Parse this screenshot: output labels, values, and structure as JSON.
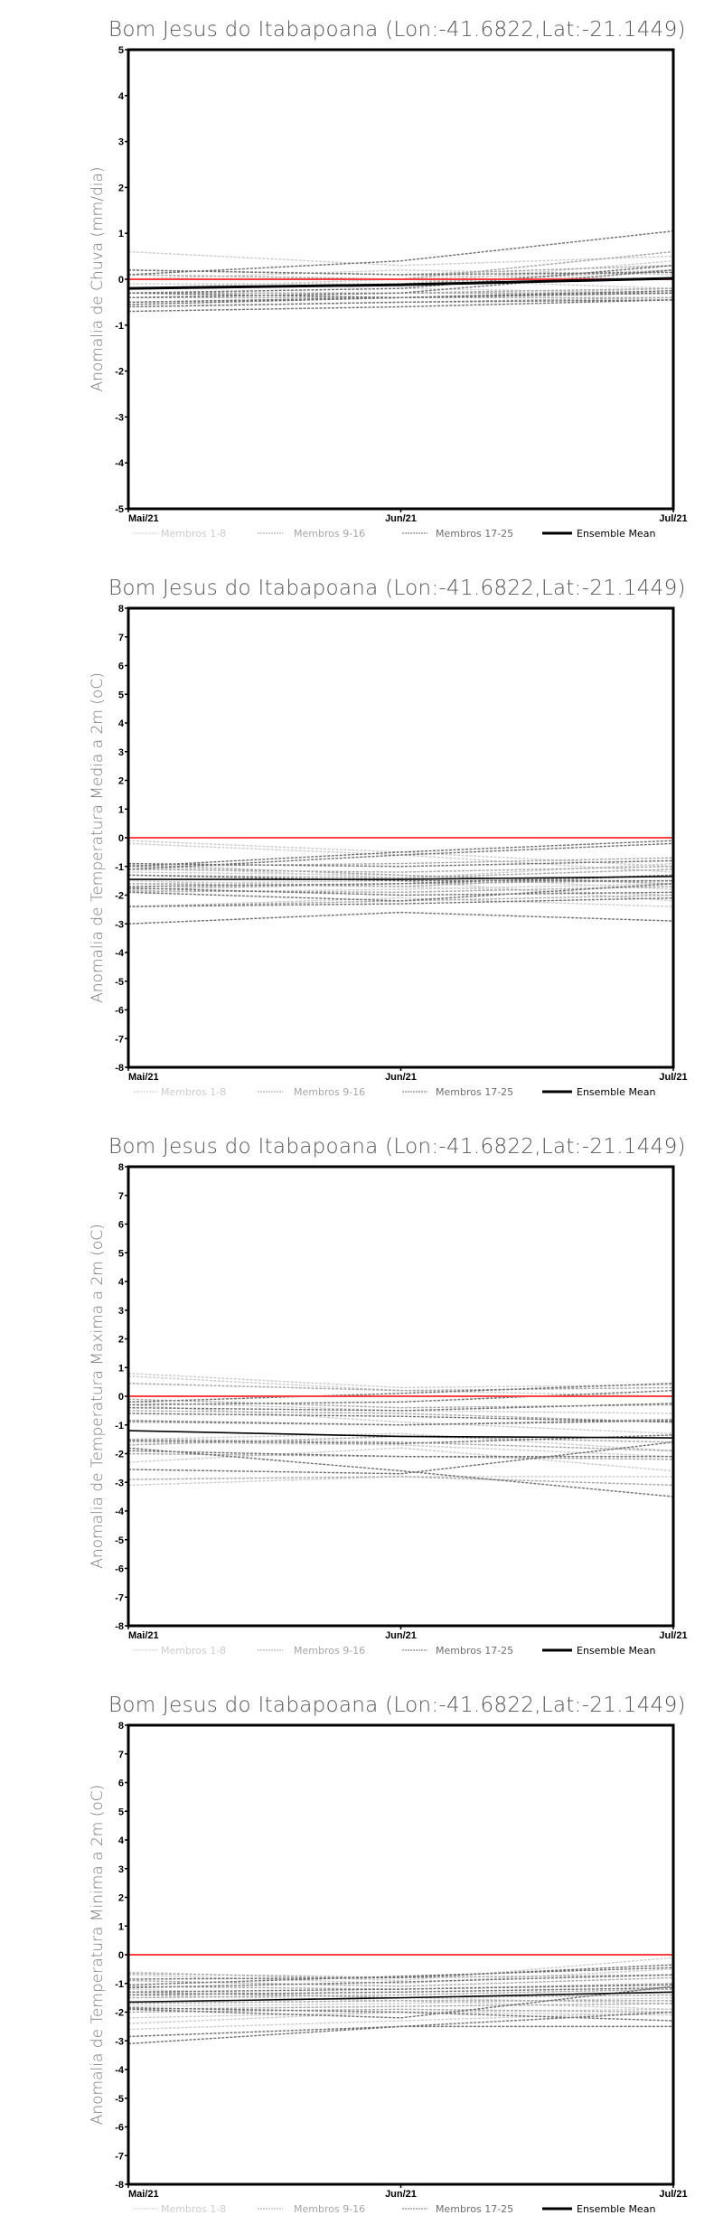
{
  "legend": {
    "m1": "Membros 1-8",
    "m2": "Membros 9-16",
    "m3": "Membros 17-25",
    "mean": "Ensemble Mean"
  },
  "colors": {
    "m1": "#cccccc",
    "m2": "#a6a6a6",
    "m3": "#6e6e6e",
    "mean": "#000000",
    "reference": "#ff4040"
  },
  "chart_data": [
    {
      "type": "line",
      "title": "Bom Jesus do Itabapoana (Lon:-41.6822,Lat:-21.1449)",
      "ylabel": "Anomalia de Chuva (mm/dia)",
      "xlabel": "",
      "categories": [
        "Mai/21",
        "Jun/21",
        "Jul/21"
      ],
      "ylim": [
        -5,
        5
      ],
      "yticks": [
        -5,
        -4,
        -3,
        -2,
        -1,
        0,
        1,
        2,
        3,
        4,
        5
      ],
      "reference": 0,
      "mean": [
        -0.2,
        -0.12,
        0.02
      ],
      "members": [
        [
          0.6,
          0.3,
          0.5
        ],
        [
          0.2,
          0.1,
          0.0
        ],
        [
          0.1,
          0.0,
          -0.2
        ],
        [
          -0.1,
          -0.1,
          0.4
        ],
        [
          0.0,
          0.2,
          0.1
        ],
        [
          -0.3,
          -0.2,
          -0.3
        ],
        [
          -0.5,
          -0.4,
          -0.2
        ],
        [
          -0.2,
          0.0,
          0.2
        ],
        [
          0.2,
          0.1,
          0.3
        ],
        [
          -0.3,
          -0.3,
          -0.2
        ],
        [
          -0.4,
          -0.4,
          -0.3
        ],
        [
          -0.6,
          -0.5,
          -0.4
        ],
        [
          0.1,
          0.0,
          0.6
        ],
        [
          -0.2,
          -0.1,
          0.2
        ],
        [
          -0.4,
          -0.3,
          -0.3
        ],
        [
          -0.5,
          -0.4,
          -0.4
        ],
        [
          0.1,
          0.4,
          1.05
        ],
        [
          -0.3,
          -0.2,
          0.3
        ],
        [
          -0.4,
          -0.3,
          0.2
        ],
        [
          -0.5,
          -0.4,
          -0.3
        ],
        [
          -0.6,
          -0.5,
          -0.45
        ],
        [
          -0.7,
          -0.6,
          -0.45
        ],
        [
          0.2,
          0.1,
          0.15
        ],
        [
          -0.3,
          -0.4,
          -0.25
        ],
        [
          -0.55,
          -0.4,
          -0.3
        ]
      ]
    },
    {
      "type": "line",
      "title": "Bom Jesus do Itabapoana (Lon:-41.6822,Lat:-21.1449)",
      "ylabel": "Anomalia de Temperatura Media a 2m (oC)",
      "xlabel": "",
      "categories": [
        "Mai/21",
        "Jun/21",
        "Jul/21"
      ],
      "ylim": [
        -8,
        8
      ],
      "yticks": [
        -8,
        -7,
        -6,
        -5,
        -4,
        -3,
        -2,
        -1,
        0,
        1,
        2,
        3,
        4,
        5,
        6,
        7,
        8
      ],
      "reference": 0,
      "mean": [
        -1.45,
        -1.45,
        -1.35
      ],
      "members": [
        [
          -0.1,
          -0.5,
          -1.0
        ],
        [
          -0.2,
          -0.6,
          -1.2
        ],
        [
          -1.5,
          -1.7,
          -2.0
        ],
        [
          -2.4,
          -2.1,
          -2.4
        ],
        [
          -1.6,
          -1.5,
          -2.2
        ],
        [
          -1.0,
          -1.4,
          -0.9
        ],
        [
          -1.9,
          -1.8,
          -1.6
        ],
        [
          -1.2,
          -1.3,
          -1.8
        ],
        [
          -1.0,
          -0.9,
          -0.7
        ],
        [
          -1.3,
          -1.4,
          -1.1
        ],
        [
          -1.8,
          -1.6,
          -1.5
        ],
        [
          -2.4,
          -2.2,
          -2.0
        ],
        [
          -0.95,
          -1.3,
          -1.6
        ],
        [
          -1.6,
          -1.7,
          -1.3
        ],
        [
          -1.1,
          -1.2,
          -1.0
        ],
        [
          -1.85,
          -1.9,
          -1.7
        ],
        [
          -1.0,
          -0.5,
          -0.1
        ],
        [
          -1.1,
          -0.6,
          -0.2
        ],
        [
          -1.7,
          -1.6,
          -1.3
        ],
        [
          -1.9,
          -2.2,
          -1.6
        ],
        [
          -3.0,
          -2.6,
          -2.9
        ],
        [
          -2.4,
          -2.3,
          -2.1
        ],
        [
          -1.3,
          -1.5,
          -1.5
        ],
        [
          -0.9,
          -1.0,
          -0.8
        ],
        [
          -1.75,
          -2.0,
          -1.9
        ]
      ]
    },
    {
      "type": "line",
      "title": "Bom Jesus do Itabapoana (Lon:-41.6822,Lat:-21.1449)",
      "ylabel": "Anomalia de Temperatura Maxima a 2m (oC)",
      "xlabel": "",
      "categories": [
        "Mai/21",
        "Jun/21",
        "Jul/21"
      ],
      "ylim": [
        -8,
        8
      ],
      "yticks": [
        -8,
        -7,
        -6,
        -5,
        -4,
        -3,
        -2,
        -1,
        0,
        1,
        2,
        3,
        4,
        5,
        6,
        7,
        8
      ],
      "reference": 0,
      "mean": [
        -1.2,
        -1.4,
        -1.45
      ],
      "members": [
        [
          0.8,
          0.3,
          0.4
        ],
        [
          0.7,
          0.2,
          0.0
        ],
        [
          -0.3,
          -0.9,
          -1.3
        ],
        [
          -2.3,
          -1.8,
          -2.6
        ],
        [
          -3.1,
          -2.8,
          -2.8
        ],
        [
          -1.5,
          -1.3,
          -1.9
        ],
        [
          -0.2,
          -0.5,
          -0.6
        ],
        [
          -1.6,
          -1.7,
          -2.1
        ],
        [
          0.45,
          0.2,
          0.3
        ],
        [
          -0.1,
          -0.4,
          -0.3
        ],
        [
          -0.5,
          -0.6,
          -0.9
        ],
        [
          -1.5,
          -1.6,
          -1.9
        ],
        [
          -2.0,
          -2.1,
          -2.2
        ],
        [
          -0.9,
          -1.0,
          -0.8
        ],
        [
          -1.7,
          -1.4,
          -1.6
        ],
        [
          -2.9,
          -2.8,
          -3.1
        ],
        [
          -0.2,
          0.1,
          0.45
        ],
        [
          -0.3,
          -0.2,
          0.2
        ],
        [
          -0.6,
          -0.7,
          -0.9
        ],
        [
          -0.85,
          -1.0,
          -0.85
        ],
        [
          -1.8,
          -2.6,
          -3.5
        ],
        [
          -2.55,
          -2.7,
          -1.6
        ],
        [
          -1.55,
          -1.65,
          -1.35
        ],
        [
          -1.9,
          -2.1,
          -2.1
        ],
        [
          -0.4,
          -0.5,
          -0.25
        ]
      ]
    },
    {
      "type": "line",
      "title": "Bom Jesus do Itabapoana (Lon:-41.6822,Lat:-21.1449)",
      "ylabel": "Anomalia de Temperatura Minima a 2m (oC)",
      "xlabel": "",
      "categories": [
        "Mai/21",
        "Jun/21",
        "Jul/21"
      ],
      "ylim": [
        -8,
        8
      ],
      "yticks": [
        -8,
        -7,
        -6,
        -5,
        -4,
        -3,
        -2,
        -1,
        0,
        1,
        2,
        3,
        4,
        5,
        6,
        7,
        8
      ],
      "reference": 0,
      "mean": [
        -1.65,
        -1.5,
        -1.3
      ],
      "members": [
        [
          -0.6,
          -0.9,
          -0.1
        ],
        [
          -0.7,
          -1.0,
          -0.5
        ],
        [
          -1.4,
          -1.6,
          -1.9
        ],
        [
          -2.6,
          -2.3,
          -2.0
        ],
        [
          -2.2,
          -2.0,
          -2.1
        ],
        [
          -1.2,
          -1.5,
          -1.7
        ],
        [
          -1.8,
          -1.7,
          -1.5
        ],
        [
          -2.4,
          -2.0,
          -1.9
        ],
        [
          -0.65,
          -0.8,
          -0.7
        ],
        [
          -1.1,
          -1.2,
          -1.0
        ],
        [
          -1.5,
          -1.4,
          -1.2
        ],
        [
          -1.9,
          -1.8,
          -1.7
        ],
        [
          -2.0,
          -1.9,
          -2.0
        ],
        [
          -1.3,
          -1.5,
          -1.4
        ],
        [
          -0.9,
          -1.1,
          -0.8
        ],
        [
          -1.7,
          -1.6,
          -1.6
        ],
        [
          -0.85,
          -0.8,
          -0.35
        ],
        [
          -1.05,
          -0.75,
          -0.45
        ],
        [
          -1.3,
          -1.2,
          -1.05
        ],
        [
          -1.9,
          -2.2,
          -1.1
        ],
        [
          -2.85,
          -2.5,
          -2.0
        ],
        [
          -3.1,
          -2.5,
          -2.5
        ],
        [
          -1.4,
          -1.3,
          -1.15
        ],
        [
          -1.85,
          -2.0,
          -2.3
        ],
        [
          -1.15,
          -0.95,
          -0.7
        ]
      ]
    }
  ]
}
